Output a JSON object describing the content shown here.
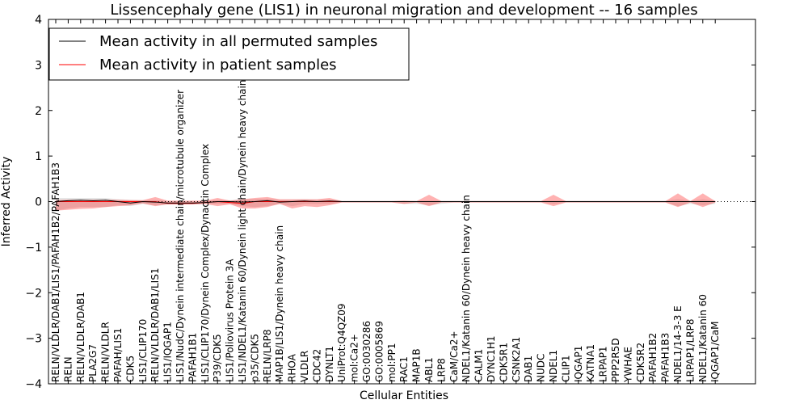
{
  "chart_data": {
    "type": "line",
    "title": "Lissencephaly gene (LIS1) in neuronal migration and development -- 16 samples",
    "xlabel": "Cellular Entities",
    "ylabel": "Inferred Activity",
    "ylim": [
      -4,
      4
    ],
    "yticks": [
      -4,
      -3,
      -2,
      -1,
      0,
      1,
      2,
      3,
      4
    ],
    "ytick_labels": [
      "−4",
      "−3",
      "−2",
      "−1",
      "0",
      "1",
      "2",
      "3",
      "4"
    ],
    "legend_position": "top-left",
    "categories": [
      "RELN/VLDLR/DAB1/LIS1/PAFAH1B2/PAFAH1B3",
      "RELN",
      "RELN/VLDLR/DAB1",
      "PLA2G7",
      "RELN/VLDLR",
      "PAFAH/LIS1",
      "CDK5",
      "LIS1/CLIP170",
      "RELN/VLDLR/DAB1/LIS1",
      "LIS1/IQGAP1",
      "LIS1/NudC/Dynein intermediate chain/microtubule organizer",
      "PAFAH1B1",
      "LIS1/CLIP170/Dynein Complex/Dynactin Complex",
      "P39/CDK5",
      "LIS1/Poliovirus Protein 3A",
      "LIS1/NDEL1/Katanin 60/Dynein light chain/Dynein heavy chain",
      "p35/CDK5",
      "RELN/LRP8",
      "MAP1B/LIS1/Dynein heavy chain",
      "RHOA",
      "VLDLR",
      "CDC42",
      "DYNLT1",
      "UniProt:Q4QZ09",
      "mol:Ca2+",
      "GO:0030286",
      "GO:0005869",
      "mol:PP1",
      "RAC1",
      "MAP1B",
      "ABL1",
      "LRP8",
      "CaM/Ca2+",
      "NDEL1/Katanin 60/Dynein heavy chain",
      "CALM1",
      "DYNC1H1",
      "CDK5R1",
      "CSNK2A1",
      "DAB1",
      "NUDC",
      "NDEL1",
      "CLIP1",
      "IQGAP1",
      "KATNA1",
      "LRPAP1",
      "PPP2R5D",
      "YWHAE",
      "CDK5R2",
      "PAFAH1B2",
      "PAFAH1B3",
      "NDEL1/14-3-3 E",
      "LRPAP1/LRP8",
      "NDEL1/Katanin 60",
      "IQGAP1/CaM"
    ],
    "series": [
      {
        "name": "Mean activity in all permuted samples",
        "color": "#000000",
        "values": [
          0.0,
          0.02,
          0.03,
          0.02,
          0.03,
          0.0,
          -0.03,
          0.0,
          -0.01,
          -0.03,
          -0.03,
          -0.03,
          -0.02,
          0.0,
          0.0,
          -0.01,
          0.0,
          0.02,
          -0.01,
          0.0,
          0.01,
          0.0,
          0.01,
          0.0,
          0.0,
          0.0,
          0.0,
          0.0,
          0.0,
          0.0,
          0.0,
          0.0,
          0.0,
          0.0,
          0.0,
          0.0,
          0.0,
          0.0,
          0.0,
          0.0,
          0.0,
          0.0,
          0.0,
          0.0,
          0.0,
          0.0,
          0.0,
          0.0,
          0.0,
          0.0,
          0.0,
          0.0,
          0.0,
          0.0
        ],
        "band_lower": [
          -0.2,
          -0.15,
          -0.12,
          -0.12,
          -0.12,
          -0.08,
          -0.1,
          -0.05,
          -0.08,
          -0.06,
          -0.06,
          -0.06,
          -0.05,
          -0.05,
          -0.05,
          -0.1,
          -0.12,
          -0.1,
          -0.05,
          -0.1,
          -0.05,
          -0.05,
          -0.05,
          -0.02,
          -0.02,
          -0.02,
          -0.02,
          -0.02,
          -0.05,
          -0.05,
          -0.08,
          -0.05,
          -0.02,
          -0.02,
          -0.02,
          -0.02,
          -0.02,
          -0.02,
          -0.02,
          -0.02,
          -0.05,
          -0.02,
          -0.02,
          -0.02,
          -0.02,
          -0.02,
          -0.02,
          -0.02,
          -0.02,
          -0.02,
          -0.1,
          -0.05,
          -0.08,
          -0.05
        ],
        "band_upper": [
          0.08,
          0.08,
          0.08,
          0.08,
          0.08,
          0.05,
          0.04,
          0.03,
          0.03,
          0.01,
          0.01,
          0.01,
          0.01,
          0.03,
          0.03,
          0.05,
          0.05,
          0.06,
          0.04,
          0.04,
          0.05,
          0.04,
          0.04,
          0.02,
          0.02,
          0.02,
          0.02,
          0.02,
          0.02,
          0.02,
          0.02,
          0.02,
          0.02,
          0.02,
          0.02,
          0.02,
          0.02,
          0.02,
          0.02,
          0.02,
          0.02,
          0.02,
          0.02,
          0.02,
          0.02,
          0.02,
          0.02,
          0.02,
          0.02,
          0.02,
          0.05,
          0.02,
          0.05,
          0.02
        ]
      },
      {
        "name": "Mean activity in patient samples",
        "color": "#ff0000",
        "values": [
          0.0,
          0.0,
          0.0,
          0.0,
          0.0,
          0.0,
          0.0,
          0.0,
          0.0,
          -0.04,
          -0.04,
          -0.04,
          -0.02,
          0.0,
          -0.02,
          -0.04,
          0.0,
          0.0,
          0.0,
          0.0,
          0.0,
          0.0,
          0.0,
          0.0,
          0.0,
          0.0,
          0.0,
          0.0,
          0.0,
          0.0,
          0.0,
          0.0,
          0.0,
          0.0,
          0.0,
          0.0,
          0.0,
          0.0,
          0.0,
          0.0,
          0.0,
          0.0,
          0.0,
          0.0,
          0.0,
          0.0,
          0.0,
          0.0,
          0.0,
          0.0,
          0.0,
          0.0,
          0.0,
          0.0
        ],
        "band_lower": [
          -0.2,
          -0.18,
          -0.16,
          -0.15,
          -0.12,
          -0.1,
          -0.08,
          -0.04,
          -0.1,
          -0.06,
          -0.06,
          -0.06,
          -0.05,
          -0.1,
          -0.06,
          -0.15,
          -0.15,
          -0.12,
          -0.05,
          -0.15,
          -0.1,
          -0.12,
          -0.08,
          -0.02,
          -0.02,
          -0.02,
          -0.02,
          -0.02,
          -0.05,
          -0.02,
          -0.1,
          -0.02,
          -0.02,
          -0.02,
          -0.02,
          -0.02,
          -0.02,
          -0.02,
          -0.02,
          -0.02,
          -0.1,
          -0.02,
          -0.02,
          -0.02,
          -0.02,
          -0.02,
          -0.02,
          -0.02,
          -0.02,
          -0.02,
          -0.12,
          -0.02,
          -0.12,
          -0.02
        ],
        "band_upper": [
          0.03,
          0.04,
          0.04,
          0.04,
          0.04,
          0.04,
          0.03,
          0.03,
          0.1,
          0.02,
          0.02,
          0.02,
          0.02,
          0.08,
          0.02,
          0.05,
          0.08,
          0.1,
          0.05,
          0.05,
          0.05,
          0.05,
          0.08,
          0.01,
          0.01,
          0.01,
          0.01,
          0.01,
          0.02,
          0.01,
          0.15,
          0.01,
          0.01,
          0.01,
          0.01,
          0.01,
          0.01,
          0.01,
          0.01,
          0.01,
          0.15,
          0.01,
          0.01,
          0.01,
          0.01,
          0.01,
          0.01,
          0.01,
          0.01,
          0.01,
          0.18,
          0.01,
          0.18,
          0.01
        ]
      }
    ]
  }
}
